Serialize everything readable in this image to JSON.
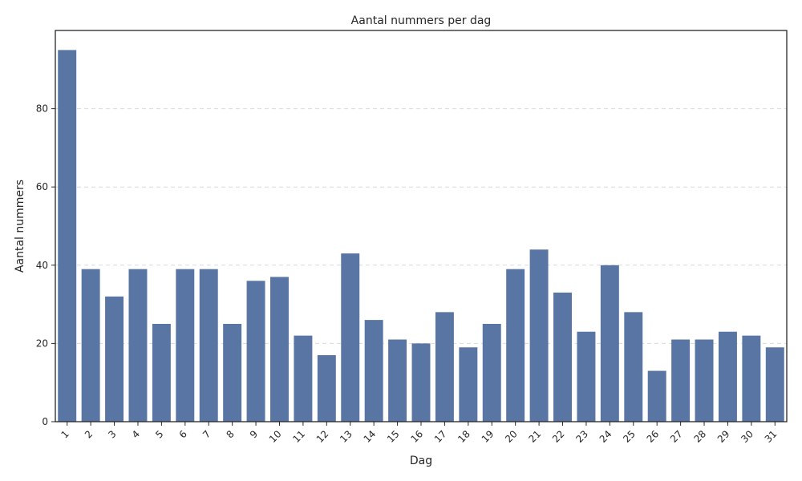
{
  "chart_data": {
    "type": "bar",
    "title": "Aantal nummers per dag",
    "xlabel": "Dag",
    "ylabel": "Aantal nummers",
    "categories": [
      "1",
      "2",
      "3",
      "4",
      "5",
      "6",
      "7",
      "8",
      "9",
      "10",
      "11",
      "12",
      "13",
      "14",
      "15",
      "16",
      "17",
      "18",
      "19",
      "20",
      "21",
      "22",
      "23",
      "24",
      "25",
      "26",
      "27",
      "28",
      "29",
      "30",
      "31"
    ],
    "values": [
      95,
      39,
      32,
      39,
      25,
      39,
      39,
      25,
      36,
      37,
      22,
      17,
      43,
      26,
      21,
      20,
      28,
      19,
      25,
      39,
      44,
      33,
      23,
      40,
      28,
      13,
      21,
      21,
      23,
      22,
      19
    ],
    "ylim": [
      0,
      100
    ],
    "yticks": [
      0,
      20,
      40,
      60,
      80
    ],
    "grid": "y-dashed",
    "bar_color": "#5975a4",
    "x_tick_rotation": 45
  }
}
